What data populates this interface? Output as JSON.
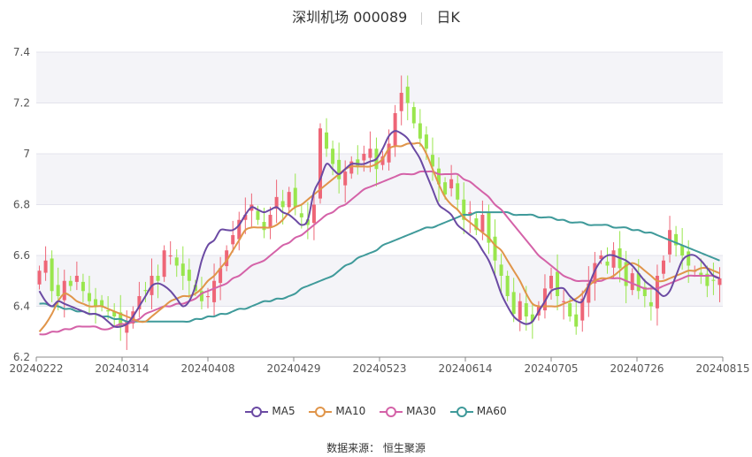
{
  "header": {
    "title": "深圳机场 000089",
    "period": "日K"
  },
  "source": "数据来源： 恒生聚源",
  "colors": {
    "up": "#ee6677",
    "down": "#99e64d",
    "ma5": "#6b4aa3",
    "ma10": "#e0954a",
    "ma30": "#d462a8",
    "ma60": "#3f9a9a",
    "band": "#f4f4f8",
    "grid": "#e3e3ec",
    "axis": "#555555"
  },
  "chart_data": {
    "type": "candlestick",
    "title": "深圳机场 000089",
    "xlabel": "",
    "ylabel": "",
    "ylim": [
      6.2,
      7.4
    ],
    "yticks": [
      "6.2",
      "6.4",
      "6.6",
      "6.8",
      "7",
      "7.2",
      "7.4"
    ],
    "xticks": [
      "20240222",
      "20240314",
      "20240408",
      "20240429",
      "20240523",
      "20240614",
      "20240705",
      "20240726",
      "20240815"
    ],
    "legend": [
      "MA5",
      "MA10",
      "MA30",
      "MA60"
    ],
    "legend_position": "bottom",
    "closes": [
      6.54,
      6.58,
      6.46,
      6.44,
      6.5,
      6.48,
      6.52,
      6.46,
      6.42,
      6.4,
      6.4,
      6.38,
      6.36,
      6.32,
      6.34,
      6.38,
      6.44,
      6.46,
      6.52,
      6.5,
      6.62,
      6.6,
      6.56,
      6.52,
      6.5,
      6.46,
      6.42,
      6.44,
      6.5,
      6.55,
      6.62,
      6.68,
      6.74,
      6.76,
      6.8,
      6.74,
      6.7,
      6.76,
      6.83,
      6.79,
      6.85,
      6.79,
      6.75,
      6.72,
      6.8,
      7.1,
      7.02,
      6.96,
      6.9,
      6.93,
      6.97,
      6.95,
      7.0,
      7.02,
      6.94,
      6.99,
      7.04,
      7.16,
      7.24,
      7.2,
      7.12,
      7.06,
      7.02,
      6.95,
      6.88,
      6.84,
      6.9,
      6.82,
      6.74,
      6.77,
      6.7,
      6.76,
      6.65,
      6.58,
      6.52,
      6.44,
      6.37,
      6.42,
      6.36,
      6.34,
      6.4,
      6.47,
      6.52,
      6.44,
      6.42,
      6.36,
      6.32,
      6.43,
      6.49,
      6.57,
      6.6,
      6.56,
      6.62,
      6.55,
      6.48,
      6.53,
      6.46,
      6.44,
      6.4,
      6.52,
      6.58,
      6.7,
      6.64,
      6.6,
      6.56,
      6.54,
      6.52,
      6.48,
      6.5,
      6.51
    ],
    "ma5": [
      6.46,
      6.42,
      6.4,
      6.42,
      6.41,
      6.4,
      6.39,
      6.38,
      6.37,
      6.37,
      6.36,
      6.34,
      6.32,
      6.32,
      6.33,
      6.36,
      6.4,
      6.44,
      6.48,
      6.49,
      6.48,
      6.46,
      6.43,
      6.4,
      6.42,
      6.48,
      6.58,
      6.64,
      6.66,
      6.7,
      6.7,
      6.7,
      6.72,
      6.76,
      6.79,
      6.78,
      6.77,
      6.78,
      6.79,
      6.77,
      6.76,
      6.74,
      6.72,
      6.74,
      6.85,
      6.9,
      6.96,
      6.94,
      6.92,
      6.94,
      6.96,
      6.96,
      6.96,
      6.97,
      6.98,
      7.02,
      7.07,
      7.09,
      7.08,
      7.06,
      7.02,
      6.98,
      6.92,
      6.86,
      6.8,
      6.78,
      6.76,
      6.72,
      6.7,
      6.68,
      6.66,
      6.62,
      6.58,
      6.52,
      6.45,
      6.4,
      6.36,
      6.34,
      6.33,
      6.34,
      6.38,
      6.42,
      6.46,
      6.47,
      6.47,
      6.44,
      6.42,
      6.42,
      6.48,
      6.54,
      6.58,
      6.6,
      6.6,
      6.59,
      6.58,
      6.56,
      6.53,
      6.5,
      6.48,
      6.46,
      6.44,
      6.46,
      6.52,
      6.58,
      6.6,
      6.6,
      6.58,
      6.55,
      6.52,
      6.51
    ],
    "ma10": [
      6.3,
      6.33,
      6.37,
      6.42,
      6.45,
      6.44,
      6.42,
      6.41,
      6.4,
      6.4,
      6.4,
      6.39,
      6.38,
      6.37,
      6.36,
      6.35,
      6.34,
      6.34,
      6.36,
      6.38,
      6.4,
      6.42,
      6.43,
      6.44,
      6.44,
      6.45,
      6.47,
      6.5,
      6.52,
      6.55,
      6.58,
      6.62,
      6.66,
      6.7,
      6.71,
      6.71,
      6.71,
      6.71,
      6.72,
      6.74,
      6.77,
      6.79,
      6.8,
      6.82,
      6.84,
      6.86,
      6.88,
      6.9,
      6.92,
      6.94,
      6.95,
      6.95,
      6.95,
      6.95,
      6.96,
      6.98,
      7.02,
      7.03,
      7.03,
      7.04,
      7.04,
      7.04,
      7.0,
      6.94,
      6.88,
      6.83,
      6.8,
      6.78,
      6.75,
      6.73,
      6.71,
      6.69,
      6.67,
      6.64,
      6.62,
      6.58,
      6.54,
      6.5,
      6.45,
      6.41,
      6.4,
      6.4,
      6.4,
      6.4,
      6.41,
      6.42,
      6.43,
      6.45,
      6.48,
      6.5,
      6.51,
      6.51,
      6.52,
      6.54,
      6.56,
      6.57,
      6.56,
      6.54,
      6.52,
      6.5,
      6.5,
      6.51,
      6.52,
      6.53,
      6.54,
      6.54,
      6.55,
      6.55,
      6.54,
      6.53
    ],
    "ma30": [
      6.29,
      6.29,
      6.3,
      6.3,
      6.31,
      6.31,
      6.32,
      6.32,
      6.32,
      6.32,
      6.31,
      6.31,
      6.32,
      6.33,
      6.33,
      6.34,
      6.35,
      6.37,
      6.38,
      6.39,
      6.4,
      6.4,
      6.41,
      6.41,
      6.42,
      6.43,
      6.45,
      6.46,
      6.47,
      6.48,
      6.49,
      6.51,
      6.52,
      6.54,
      6.56,
      6.57,
      6.58,
      6.6,
      6.62,
      6.64,
      6.65,
      6.67,
      6.68,
      6.7,
      6.72,
      6.74,
      6.76,
      6.77,
      6.79,
      6.8,
      6.82,
      6.84,
      6.86,
      6.87,
      6.88,
      6.89,
      6.9,
      6.91,
      6.92,
      6.92,
      6.92,
      6.93,
      6.93,
      6.93,
      6.92,
      6.92,
      6.92,
      6.92,
      6.9,
      6.89,
      6.87,
      6.85,
      6.83,
      6.8,
      6.78,
      6.75,
      6.72,
      6.69,
      6.66,
      6.63,
      6.6,
      6.58,
      6.56,
      6.54,
      6.52,
      6.51,
      6.5,
      6.5,
      6.5,
      6.5,
      6.5,
      6.51,
      6.51,
      6.51,
      6.5,
      6.49,
      6.48,
      6.47,
      6.47,
      6.47,
      6.48,
      6.49,
      6.5,
      6.51,
      6.52,
      6.52,
      6.52,
      6.52,
      6.52,
      6.51
    ],
    "ma60": [
      6.41,
      6.41,
      6.4,
      6.4,
      6.39,
      6.39,
      6.38,
      6.38,
      6.37,
      6.37,
      6.36,
      6.36,
      6.35,
      6.35,
      6.34,
      6.34,
      6.34,
      6.34,
      6.34,
      6.34,
      6.34,
      6.34,
      6.34,
      6.34,
      6.34,
      6.35,
      6.35,
      6.36,
      6.36,
      6.37,
      6.37,
      6.38,
      6.39,
      6.39,
      6.4,
      6.41,
      6.42,
      6.42,
      6.43,
      6.43,
      6.44,
      6.45,
      6.47,
      6.48,
      6.49,
      6.5,
      6.51,
      6.52,
      6.54,
      6.56,
      6.57,
      6.59,
      6.6,
      6.61,
      6.62,
      6.64,
      6.65,
      6.66,
      6.67,
      6.68,
      6.69,
      6.7,
      6.71,
      6.71,
      6.72,
      6.73,
      6.74,
      6.75,
      6.76,
      6.76,
      6.77,
      6.77,
      6.77,
      6.77,
      6.77,
      6.77,
      6.76,
      6.76,
      6.76,
      6.76,
      6.75,
      6.75,
      6.75,
      6.74,
      6.74,
      6.73,
      6.73,
      6.73,
      6.72,
      6.72,
      6.72,
      6.72,
      6.71,
      6.71,
      6.71,
      6.7,
      6.7,
      6.69,
      6.69,
      6.68,
      6.67,
      6.66,
      6.65,
      6.64,
      6.63,
      6.62,
      6.61,
      6.6,
      6.59,
      6.58
    ]
  }
}
